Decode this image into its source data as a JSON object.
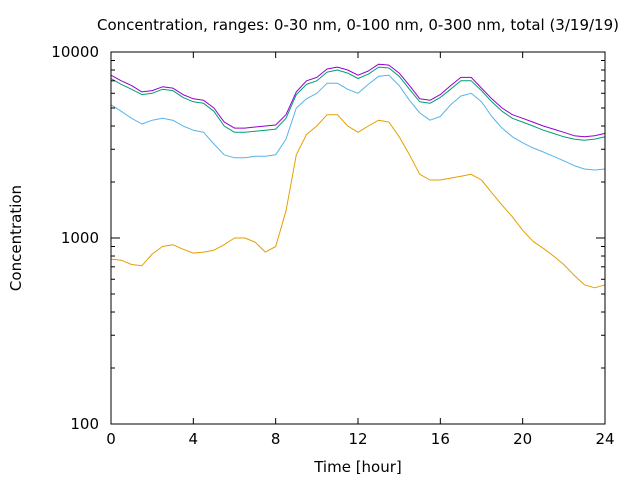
{
  "chart_data": {
    "type": "line",
    "title": "Concentration, ranges: 0-30 nm, 0-100 nm, 0-300 nm, total (3/19/19)",
    "xlabel": "Time [hour]",
    "ylabel": "Concentration",
    "x_scale": "linear",
    "y_scale": "log",
    "xlim": [
      0,
      24
    ],
    "ylim": [
      100,
      10000
    ],
    "x_ticks": [
      0,
      4,
      8,
      12,
      16,
      20,
      24
    ],
    "x_tick_labels": [
      "0",
      "4",
      "8",
      "12",
      "16",
      "20",
      "24"
    ],
    "y_ticks": [
      100,
      1000,
      10000
    ],
    "y_tick_labels": [
      "100",
      "1000",
      "10000"
    ],
    "grid": false,
    "legend": "none",
    "x": [
      0,
      0.5,
      1,
      1.5,
      2,
      2.5,
      3,
      3.5,
      4,
      4.5,
      5,
      5.5,
      6,
      6.5,
      7,
      7.5,
      8,
      8.5,
      9,
      9.5,
      10,
      10.5,
      11,
      11.5,
      12,
      12.5,
      13,
      13.5,
      14,
      14.5,
      15,
      15.5,
      16,
      16.5,
      17,
      17.5,
      18,
      18.5,
      19,
      19.5,
      20,
      20.5,
      21,
      21.5,
      22,
      22.5,
      23,
      23.5,
      24
    ],
    "series": [
      {
        "color": "#e69f00",
        "values": [
          770,
          760,
          720,
          710,
          820,
          900,
          920,
          870,
          830,
          840,
          860,
          920,
          1000,
          1000,
          950,
          840,
          900,
          1400,
          2800,
          3600,
          4000,
          4600,
          4600,
          4000,
          3700,
          4000,
          4300,
          4200,
          3500,
          2800,
          2200,
          2050,
          2050,
          2100,
          2150,
          2200,
          2050,
          1750,
          1500,
          1300,
          1100,
          960,
          880,
          800,
          720,
          630,
          560,
          540,
          560
        ]
      },
      {
        "color": "#56b4e9",
        "values": [
          5200,
          4800,
          4400,
          4100,
          4300,
          4400,
          4300,
          4000,
          3800,
          3700,
          3200,
          2800,
          2700,
          2700,
          2750,
          2750,
          2800,
          3400,
          5000,
          5600,
          6000,
          6800,
          6800,
          6300,
          6000,
          6700,
          7400,
          7500,
          6600,
          5500,
          4700,
          4300,
          4500,
          5200,
          5800,
          6000,
          5400,
          4500,
          3900,
          3500,
          3250,
          3050,
          2900,
          2750,
          2600,
          2450,
          2350,
          2320,
          2350
        ]
      },
      {
        "color": "#009e73",
        "values": [
          7200,
          6700,
          6300,
          5900,
          6000,
          6300,
          6200,
          5700,
          5400,
          5300,
          4800,
          4000,
          3700,
          3700,
          3750,
          3800,
          3850,
          4400,
          5900,
          6700,
          7000,
          7800,
          8000,
          7700,
          7200,
          7600,
          8300,
          8200,
          7400,
          6300,
          5400,
          5300,
          5700,
          6300,
          7000,
          7000,
          6200,
          5400,
          4800,
          4400,
          4200,
          4000,
          3800,
          3650,
          3500,
          3400,
          3350,
          3400,
          3500
        ]
      },
      {
        "color": "#9400d3",
        "values": [
          7500,
          7000,
          6600,
          6100,
          6200,
          6500,
          6400,
          5900,
          5600,
          5500,
          5000,
          4200,
          3900,
          3900,
          3950,
          4000,
          4050,
          4600,
          6100,
          7000,
          7300,
          8100,
          8300,
          8000,
          7500,
          7900,
          8600,
          8500,
          7700,
          6600,
          5600,
          5500,
          5900,
          6600,
          7300,
          7300,
          6400,
          5600,
          5000,
          4600,
          4400,
          4200,
          4000,
          3850,
          3700,
          3550,
          3500,
          3550,
          3650
        ]
      }
    ]
  }
}
